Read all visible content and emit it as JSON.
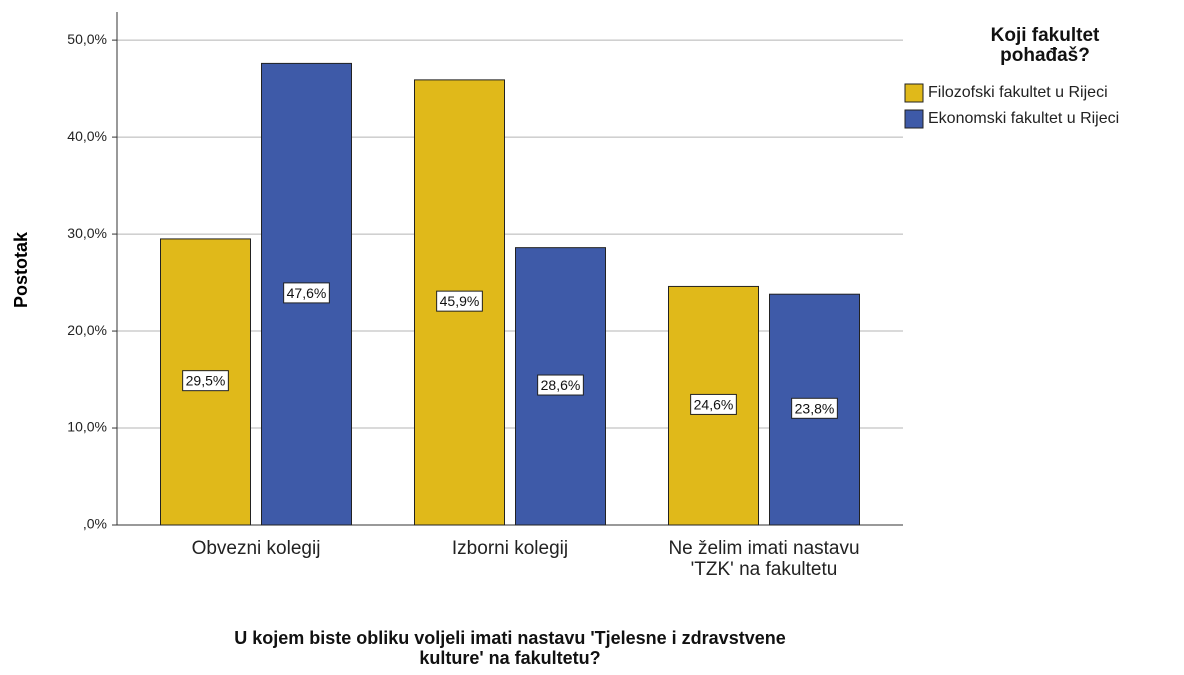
{
  "chart_data": {
    "type": "bar",
    "y_label": "Postotak",
    "x_label": "U kojem biste obliku voljeli imati nastavu 'Tjelesne i zdravstvene kulture' na fakultetu?",
    "legend_title": "Koji fakultet pohađaš?",
    "categories": [
      "Obvezni kolegij",
      "Izborni kolegij",
      "Ne želim imati nastavu 'TZK' na fakultetu"
    ],
    "series": [
      {
        "name": "Filozofski fakultet u Rijeci",
        "color": "#e0b91a",
        "values": [
          29.5,
          45.9,
          24.6
        ],
        "value_labels": [
          "29,5%",
          "45,9%",
          "24,6%"
        ]
      },
      {
        "name": "Ekonomski fakultet u Rijeci",
        "color": "#3e5aa8",
        "values": [
          47.6,
          28.6,
          23.8
        ],
        "value_labels": [
          "47,6%",
          "28,6%",
          "23,8%"
        ]
      }
    ],
    "ylim": [
      0,
      52.9
    ],
    "yticks": [
      {
        "value": 0,
        "label": ",0%"
      },
      {
        "value": 10,
        "label": "10,0%"
      },
      {
        "value": 20,
        "label": "20,0%"
      },
      {
        "value": 30,
        "label": "30,0%"
      },
      {
        "value": 40,
        "label": "40,0%"
      },
      {
        "value": 50,
        "label": "50,0%"
      }
    ],
    "grid": true,
    "legend": "right"
  }
}
